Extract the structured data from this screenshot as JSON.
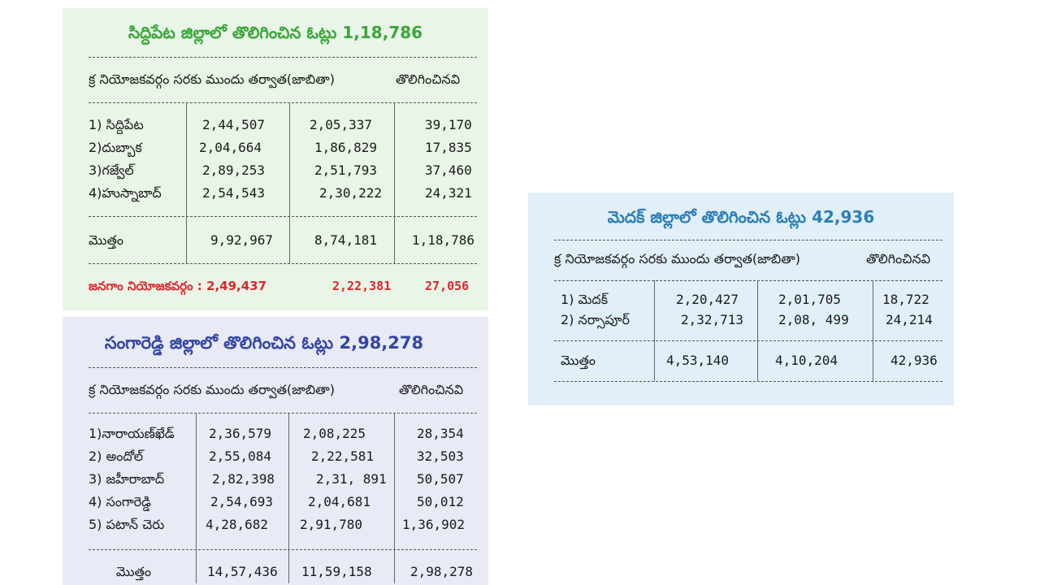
{
  "siddipet": {
    "title": "సిద్దిపేట జిల్లాలో తొలిగించిన ఓట్లు 1,18,786",
    "header_left": "క్ర నియోజకవర్గం సరకు ముందు తర్వాత(జాబితా)",
    "header_right": "తొలిగించినవి",
    "rows": [
      {
        "name": "1) సిద్దిపేట",
        "before": "2,44,507",
        "after": "2,05,337",
        "removed": "39,170"
      },
      {
        "name": "2)దుబ్బాక",
        "before": "2,04,664",
        "after": "1,86,829",
        "removed": "17,835"
      },
      {
        "name": "3)గజ్వేల్",
        "before": "2,89,253",
        "after": "2,51,793",
        "removed": "37,460"
      },
      {
        "name": "4)హుస్నాబాద్",
        "before": "2,54,543",
        "after": "2,30,222",
        "removed": "24,321"
      }
    ],
    "total": {
      "name": "మొత్తం",
      "before": "9,92,967",
      "after": "8,74,181",
      "removed": "1,18,786"
    },
    "note": {
      "label": "జనగాం నియోజకవర్గం : 2,49,437",
      "after": "2,22,381",
      "removed": "27,056"
    }
  },
  "sangareddy": {
    "title": "సంగారెడ్డి జిల్లాలో తొలిగించిన ఓట్లు 2,98,278",
    "header_left": "క్ర నియోజకవర్గం సరకు ముందు తర్వాత(జాబితా)",
    "header_right": "తొలిగించినవి",
    "rows": [
      {
        "name": "1)నారాయణ్‌ఖేడ్",
        "before": "2,36,579",
        "after": "2,08,225",
        "removed": "28,354"
      },
      {
        "name": "2) అందోల్",
        "before": "2,55,084",
        "after": "2,22,581",
        "removed": "32,503"
      },
      {
        "name": "3) జహీరాబాద్",
        "before": "2,82,398",
        "after": "2,31, 891",
        "removed": "50,507"
      },
      {
        "name": "4) సంగారెడ్డి",
        "before": "2,54,693",
        "after": "2,04,681",
        "removed": "50,012"
      },
      {
        "name": "5) పటాన్ చెరు",
        "before": "4,28,682",
        "after": "2,91,780",
        "removed": "1,36,902"
      }
    ],
    "total": {
      "name": "మొత్తం",
      "before": "14,57,436",
      "after": "11,59,158",
      "removed": "2,98,278"
    }
  },
  "medak": {
    "title": "మెదక్ జిల్లాలో తొలిగించిన ఓట్లు 42,936",
    "header_left": "క్ర నియోజకవర్గం సరకు ముందు తర్వాత(జాబితా)",
    "header_right": "తొలిగించినవి",
    "rows": [
      {
        "name": "1) మెదక్",
        "before": "2,20,427",
        "after": "2,01,705",
        "removed": "18,722"
      },
      {
        "name": "2) నర్సాపూర్",
        "before": "2,32,713",
        "after": "2,08, 499",
        "removed": "24,214"
      }
    ],
    "total": {
      "name": "మొత్తం",
      "before": "4,53,140",
      "after": "4,10,204",
      "removed": "42,936"
    }
  }
}
